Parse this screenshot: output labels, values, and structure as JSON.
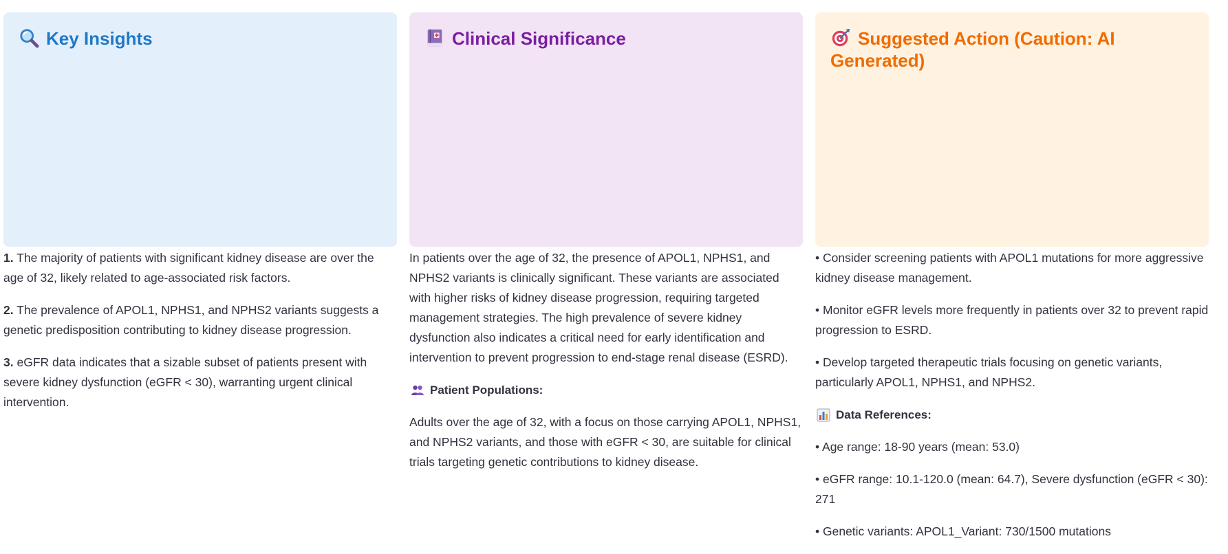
{
  "key_insights": {
    "title": "Key Insights",
    "icon": "magnifying-glass-icon",
    "items": [
      {
        "num": "1.",
        "text": "The majority of patients with significant kidney disease are over the age of 32, likely related to age-associated risk factors."
      },
      {
        "num": "2.",
        "text": "The prevalence of APOL1, NPHS1, and NPHS2 variants suggests a genetic predisposition contributing to kidney disease progression."
      },
      {
        "num": "3.",
        "text": "eGFR data indicates that a sizable subset of patients present with severe kidney dysfunction (eGFR < 30), warranting urgent clinical intervention."
      }
    ],
    "colors": {
      "background": "#e3f0fb",
      "title": "#1f78c8"
    }
  },
  "clinical_significance": {
    "title": "Clinical Significance",
    "icon": "medical-book-icon",
    "paragraph": "In patients over the age of 32, the presence of APOL1, NPHS1, and NPHS2 variants is clinically significant. These variants are associated with higher risks of kidney disease progression, requiring targeted management strategies. The high prevalence of severe kidney dysfunction also indicates a critical need for early identification and intervention to prevent progression to end-stage renal disease (ESRD).",
    "populations_heading": "Patient Populations:",
    "populations_icon": "people-icon",
    "populations_text": "Adults over the age of 32, with a focus on those carrying APOL1, NPHS1, and NPHS2 variants, and those with eGFR < 30, are suitable for clinical trials targeting genetic contributions to kidney disease.",
    "colors": {
      "background": "#f2e4f5",
      "title": "#7b1fa2"
    }
  },
  "suggested_action": {
    "title": "Suggested Action (Caution: AI Generated)",
    "icon": "target-icon",
    "actions": [
      "• Consider screening patients with APOL1 mutations for more aggressive kidney disease management.",
      "• Monitor eGFR levels more frequently in patients over 32 to prevent rapid progression to ESRD.",
      "• Develop targeted therapeutic trials focusing on genetic variants, particularly APOL1, NPHS1, and NPHS2."
    ],
    "references_heading": "Data References:",
    "references_icon": "bar-chart-icon",
    "references": [
      "• Age range: 18-90 years (mean: 53.0)",
      "• eGFR range: 10.1-120.0 (mean: 64.7), Severe dysfunction (eGFR < 30): 271",
      "• Genetic variants: APOL1_Variant: 730/1500 mutations"
    ],
    "colors": {
      "background": "#fff2e1",
      "title": "#ef6c00"
    }
  }
}
